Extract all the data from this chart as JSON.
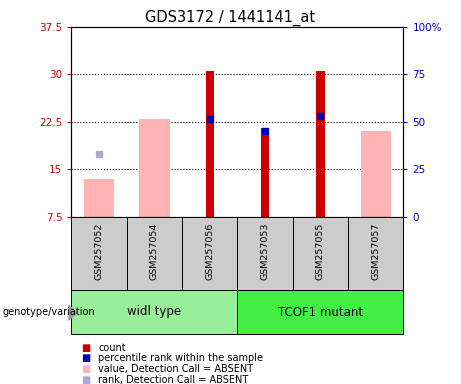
{
  "title": "GDS3172 / 1441141_at",
  "samples": [
    "GSM257052",
    "GSM257054",
    "GSM257056",
    "GSM257053",
    "GSM257055",
    "GSM257057"
  ],
  "groups": [
    "widl type",
    "TCOF1 mutant"
  ],
  "ylim_left": [
    7.5,
    37.5
  ],
  "ylim_right": [
    0,
    100
  ],
  "yticks_left": [
    7.5,
    15.0,
    22.5,
    30.0,
    37.5
  ],
  "yticks_right": [
    0,
    25,
    50,
    75,
    100
  ],
  "ytick_labels_left": [
    "7.5",
    "15",
    "22.5",
    "30",
    "37.5"
  ],
  "ytick_labels_right": [
    "0",
    "25",
    "50",
    "75",
    "100%"
  ],
  "red_bars": [
    null,
    null,
    30.5,
    21.5,
    30.5,
    null
  ],
  "pink_bars": [
    13.5,
    23.0,
    null,
    null,
    null,
    21.0
  ],
  "blue_markers": [
    null,
    null,
    23.0,
    21.0,
    23.5,
    null
  ],
  "lightblue_markers": [
    17.5,
    null,
    null,
    null,
    null,
    null
  ],
  "bar_bottom": 7.5,
  "red_color": "#cc0000",
  "pink_color": "#ffb3b3",
  "blue_color": "#0000bb",
  "lightblue_color": "#aaaacc",
  "sample_bg": "#cccccc",
  "group1_color": "#99ee99",
  "group2_color": "#44ee44",
  "left_tick_color": "#cc0000",
  "right_tick_color": "#0000bb",
  "gridline_y": [
    15.0,
    22.5,
    30.0
  ],
  "legend_items": [
    [
      "#cc0000",
      "count"
    ],
    [
      "#0000bb",
      "percentile rank within the sample"
    ],
    [
      "#ffb3b3",
      "value, Detection Call = ABSENT"
    ],
    [
      "#aaaacc",
      "rank, Detection Call = ABSENT"
    ]
  ]
}
